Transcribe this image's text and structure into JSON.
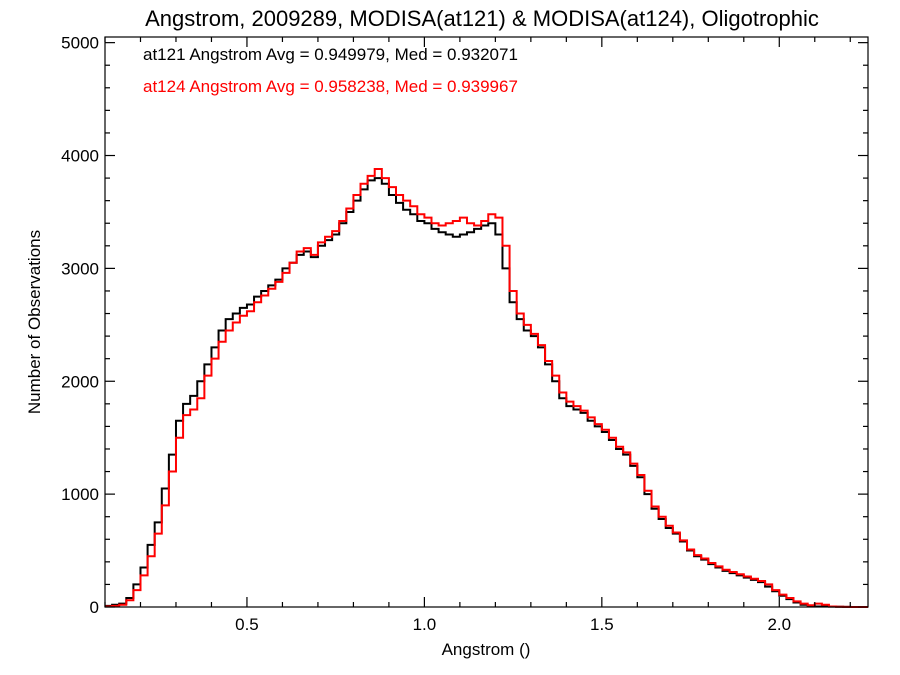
{
  "chart_data": {
    "type": "line",
    "step": true,
    "title": "Angstrom, 2009289, MODISA(at121) & MODISA(at124), Oligotrophic",
    "xlabel": "Angstrom ()",
    "ylabel": "Number of Observations",
    "xlim": [
      0.1,
      2.25
    ],
    "ylim": [
      0,
      5050
    ],
    "x_ticks": [
      0.5,
      1.0,
      1.5,
      2.0
    ],
    "x_tick_labels": [
      "0.5",
      "1.0",
      "1.5",
      "2.0"
    ],
    "y_ticks": [
      0,
      1000,
      2000,
      3000,
      4000,
      5000
    ],
    "y_tick_labels": [
      "0",
      "1000",
      "2000",
      "3000",
      "4000",
      "5000"
    ],
    "grid": false,
    "legend_position": "top-left",
    "series": [
      {
        "annotation": "at121 Angstrom Avg = 0.949979, Med = 0.932071",
        "color": "#000000",
        "x": [
          0.1,
          0.12,
          0.14,
          0.16,
          0.18,
          0.2,
          0.22,
          0.24,
          0.26,
          0.28,
          0.3,
          0.32,
          0.34,
          0.36,
          0.38,
          0.4,
          0.42,
          0.44,
          0.46,
          0.48,
          0.5,
          0.52,
          0.54,
          0.56,
          0.58,
          0.6,
          0.62,
          0.64,
          0.66,
          0.68,
          0.7,
          0.72,
          0.74,
          0.76,
          0.78,
          0.8,
          0.82,
          0.84,
          0.86,
          0.88,
          0.9,
          0.92,
          0.94,
          0.96,
          0.98,
          1.0,
          1.02,
          1.04,
          1.06,
          1.08,
          1.1,
          1.12,
          1.14,
          1.16,
          1.18,
          1.2,
          1.22,
          1.24,
          1.26,
          1.28,
          1.3,
          1.32,
          1.34,
          1.36,
          1.38,
          1.4,
          1.42,
          1.44,
          1.46,
          1.48,
          1.5,
          1.52,
          1.54,
          1.56,
          1.58,
          1.6,
          1.62,
          1.64,
          1.66,
          1.68,
          1.7,
          1.72,
          1.74,
          1.76,
          1.78,
          1.8,
          1.82,
          1.84,
          1.86,
          1.88,
          1.9,
          1.92,
          1.94,
          1.96,
          1.98,
          2.0,
          2.02,
          2.04,
          2.06,
          2.08,
          2.1,
          2.12,
          2.14,
          2.16,
          2.18,
          2.2,
          2.22,
          2.24
        ],
        "y": [
          10,
          20,
          30,
          80,
          200,
          350,
          550,
          750,
          1050,
          1350,
          1650,
          1800,
          1870,
          2000,
          2150,
          2300,
          2450,
          2550,
          2600,
          2650,
          2680,
          2750,
          2800,
          2850,
          2900,
          3000,
          3050,
          3120,
          3150,
          3100,
          3200,
          3250,
          3300,
          3400,
          3500,
          3600,
          3700,
          3780,
          3800,
          3750,
          3650,
          3580,
          3520,
          3480,
          3420,
          3400,
          3350,
          3320,
          3300,
          3280,
          3300,
          3320,
          3350,
          3380,
          3400,
          3300,
          3000,
          2700,
          2550,
          2450,
          2400,
          2300,
          2150,
          2000,
          1850,
          1780,
          1750,
          1720,
          1650,
          1600,
          1550,
          1480,
          1400,
          1350,
          1250,
          1150,
          1000,
          870,
          780,
          700,
          650,
          580,
          500,
          450,
          420,
          380,
          350,
          320,
          300,
          280,
          260,
          240,
          220,
          180,
          140,
          100,
          70,
          40,
          20,
          10,
          5,
          5,
          3,
          2,
          1,
          0,
          0,
          0
        ]
      },
      {
        "annotation": "at124 Angstrom Avg = 0.958238, Med = 0.939967",
        "color": "#ff0000",
        "x": [
          0.1,
          0.12,
          0.14,
          0.16,
          0.18,
          0.2,
          0.22,
          0.24,
          0.26,
          0.28,
          0.3,
          0.32,
          0.34,
          0.36,
          0.38,
          0.4,
          0.42,
          0.44,
          0.46,
          0.48,
          0.5,
          0.52,
          0.54,
          0.56,
          0.58,
          0.6,
          0.62,
          0.64,
          0.66,
          0.68,
          0.7,
          0.72,
          0.74,
          0.76,
          0.78,
          0.8,
          0.82,
          0.84,
          0.86,
          0.88,
          0.9,
          0.92,
          0.94,
          0.96,
          0.98,
          1.0,
          1.02,
          1.04,
          1.06,
          1.08,
          1.1,
          1.12,
          1.14,
          1.16,
          1.18,
          1.2,
          1.22,
          1.24,
          1.26,
          1.28,
          1.3,
          1.32,
          1.34,
          1.36,
          1.38,
          1.4,
          1.42,
          1.44,
          1.46,
          1.48,
          1.5,
          1.52,
          1.54,
          1.56,
          1.58,
          1.6,
          1.62,
          1.64,
          1.66,
          1.68,
          1.7,
          1.72,
          1.74,
          1.76,
          1.78,
          1.8,
          1.82,
          1.84,
          1.86,
          1.88,
          1.9,
          1.92,
          1.94,
          1.96,
          1.98,
          2.0,
          2.02,
          2.04,
          2.06,
          2.08,
          2.1,
          2.12,
          2.14,
          2.16,
          2.18,
          2.2,
          2.22,
          2.24
        ],
        "y": [
          5,
          10,
          20,
          60,
          150,
          280,
          450,
          650,
          900,
          1200,
          1500,
          1700,
          1750,
          1850,
          2050,
          2200,
          2350,
          2450,
          2520,
          2580,
          2620,
          2700,
          2760,
          2820,
          2880,
          2960,
          3050,
          3150,
          3180,
          3120,
          3230,
          3280,
          3330,
          3420,
          3530,
          3650,
          3750,
          3820,
          3880,
          3800,
          3720,
          3650,
          3600,
          3550,
          3480,
          3450,
          3400,
          3380,
          3400,
          3420,
          3450,
          3400,
          3380,
          3420,
          3480,
          3450,
          3200,
          2800,
          2600,
          2500,
          2420,
          2320,
          2180,
          2050,
          1900,
          1820,
          1780,
          1740,
          1680,
          1620,
          1570,
          1500,
          1420,
          1370,
          1270,
          1170,
          1030,
          890,
          800,
          720,
          660,
          590,
          510,
          460,
          430,
          390,
          360,
          330,
          310,
          290,
          270,
          250,
          230,
          200,
          150,
          110,
          80,
          50,
          30,
          15,
          30,
          20,
          5,
          2,
          1,
          0,
          0,
          0
        ]
      }
    ]
  }
}
